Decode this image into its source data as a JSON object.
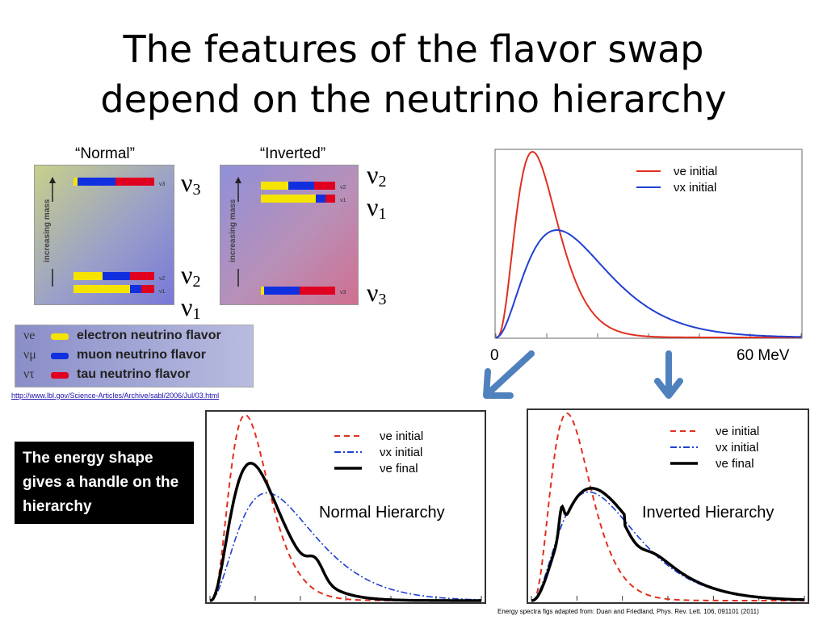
{
  "slide": {
    "title_line1": "The features of the flavor swap",
    "title_line2": "depend on the neutrino hierarchy",
    "normal_label": "“Normal”",
    "inverted_label": "“Inverted”",
    "axis_text": "increasing mass",
    "normal_states": [
      "ν3",
      "ν2",
      "ν1"
    ],
    "inverted_states": [
      "ν2",
      "ν1",
      "ν3"
    ],
    "flavor_legend": [
      {
        "symbol": "νe",
        "text": "electron neutrino flavor",
        "color": "#f5e400"
      },
      {
        "symbol": "νμ",
        "text": "muon neutrino flavor",
        "color": "#1030e0"
      },
      {
        "symbol": "ντ",
        "text": "tau neutrino flavor",
        "color": "#e00020"
      }
    ],
    "link": "http://www.lbl.gov/Science-Articles/Archive/sabl/2006/Jul/03.html",
    "note": "The energy shape gives a handle on the hierarchy",
    "normal_hierarchy": "Normal Hierarchy",
    "inverted_hierarchy": "Inverted Hierarchy",
    "credit": "Energy spectra figs adapted from: Duan and Friedland, Phys. Rev. Lett. 106, 091101 (2011)"
  },
  "chart_data": [
    {
      "type": "line",
      "xlabel": "",
      "x_tick_labels": [
        "0",
        "60 MeV"
      ],
      "series": [
        {
          "name": "νe initial",
          "color": "#e03020"
        },
        {
          "name": "νx initial",
          "color": "#2040d0"
        }
      ]
    },
    {
      "type": "line",
      "series": [
        {
          "name": "νe initial",
          "color": "#e03020",
          "style": "dashed"
        },
        {
          "name": "νx initial",
          "color": "#2040d0",
          "style": "dash-dot"
        },
        {
          "name": "νe final",
          "color": "#000000",
          "style": "solid"
        }
      ],
      "annotation": "Normal Hierarchy"
    },
    {
      "type": "line",
      "series": [
        {
          "name": "νe initial",
          "color": "#e03020",
          "style": "dashed"
        },
        {
          "name": "νx initial",
          "color": "#2040d0",
          "style": "dash-dot"
        },
        {
          "name": "νe final",
          "color": "#000000",
          "style": "solid"
        }
      ],
      "annotation": "Inverted Hierarchy"
    }
  ]
}
